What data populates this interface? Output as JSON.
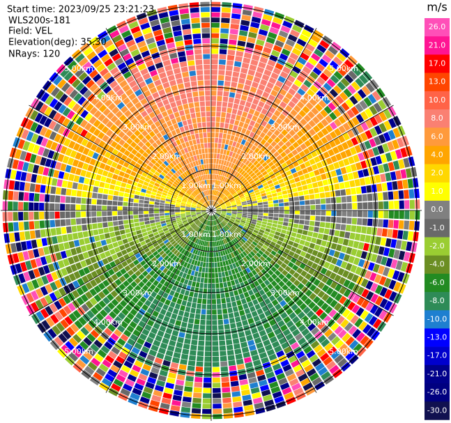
{
  "header": {
    "start_time": "Start time: 2023/09/25 23:21:23",
    "instrument": "WLS200s-181",
    "field": "Field: VEL",
    "elevation": "Elevation(deg): 35.30",
    "nrays": "NRays: 120"
  },
  "ring_labels": [
    "1.00km",
    "2.00km",
    "3.00km",
    "4.00km",
    "5.00km"
  ],
  "colorbar": {
    "unit": "m/s",
    "labels": [
      "26.0",
      "21.0",
      "17.0",
      "13.0",
      "10.0",
      "8.0",
      "6.0",
      "4.0",
      "2.0",
      "1.0",
      "0.0",
      "-1.0",
      "-2.0",
      "-4.0",
      "-6.0",
      "-8.0",
      "-10.0",
      "-13.0",
      "-17.0",
      "-21.0",
      "-26.0",
      "-30.0"
    ],
    "colors": [
      "#ff4fb8",
      "#ff1493",
      "#ff0000",
      "#ff4500",
      "#ff6347",
      "#fa8072",
      "#ff9a3c",
      "#ffa500",
      "#ffd700",
      "#ffff00",
      "#808080",
      "#696969",
      "#9acd32",
      "#6b8e23",
      "#228b22",
      "#2e8b57",
      "#1e7fd0",
      "#0000ff",
      "#0000cd",
      "#00008b",
      "#000080",
      "#101050"
    ]
  }
}
